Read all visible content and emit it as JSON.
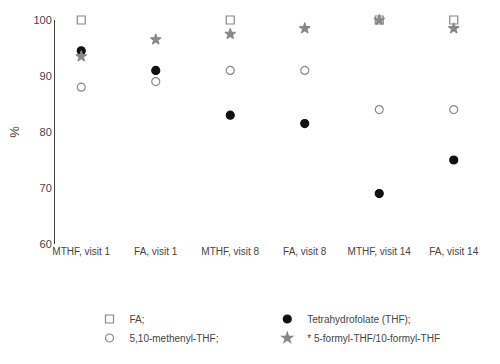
{
  "chart_data": {
    "type": "scatter",
    "ylabel": "%",
    "categories": [
      "MTHF, visit 1",
      "FA, visit 1",
      "MTHF, visit 8",
      "FA, visit 8",
      "MTHF, visit 14",
      "FA, visit 14"
    ],
    "series": [
      {
        "name": "FA;",
        "color": "#888888",
        "marker": "square-open",
        "values": [
          100,
          null,
          100,
          null,
          100,
          100
        ]
      },
      {
        "name": "Tetrahydrofolate (THF);",
        "color": "#111111",
        "marker": "circle",
        "values": [
          94.5,
          91.0,
          83.0,
          81.5,
          69.0,
          75.0
        ]
      },
      {
        "name": "5,10-methenyl-THF;",
        "color": "#888888",
        "marker": "circle-open",
        "values": [
          88.0,
          89.0,
          91.0,
          91.0,
          84.0,
          84.0
        ]
      },
      {
        "name": "* 5-formyl-THF/10-formyl-THF",
        "color": "#888888",
        "marker": "star",
        "values": [
          93.5,
          96.5,
          97.5,
          98.5,
          100.0,
          98.5
        ]
      }
    ],
    "ylim": [
      60,
      100
    ],
    "yticks": [
      60,
      70,
      80,
      90,
      100
    ],
    "grid": false,
    "legend": "bottom"
  }
}
